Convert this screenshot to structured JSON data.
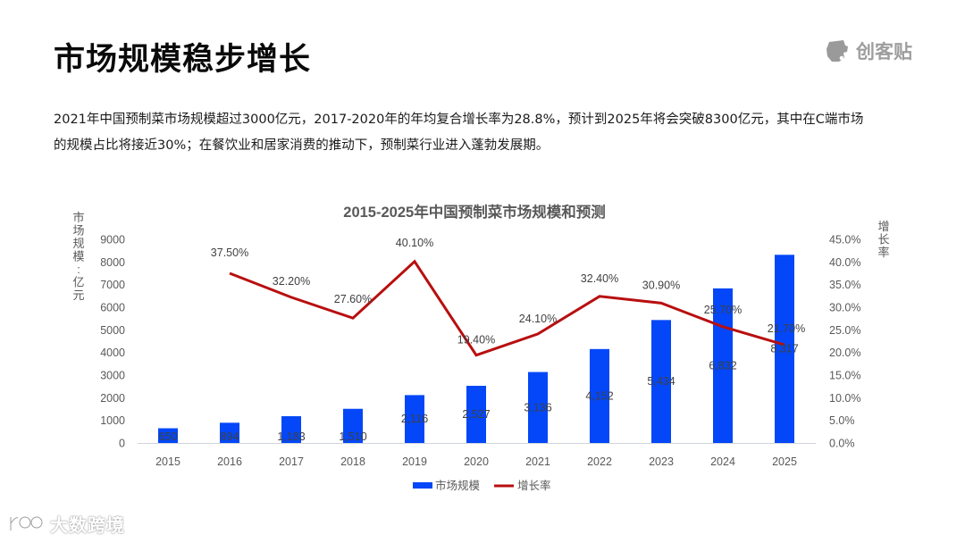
{
  "page": {
    "title": "市场规模稳步增长",
    "brand": {
      "icon": "chuangkit-logo-icon",
      "text": "创客贴"
    },
    "description": [
      "2021年中国预制菜市场规模超过3000亿元，2017-2020年的年均复合增长率为28.8%，预计到2025年将会突破8300亿元，其中在C端市场",
      "的规模占比将接近30%；在餐饮业和居家消费的推动下，预制菜行业进入蓬勃发展期。"
    ],
    "watermark": {
      "icon": "dashu-logo-icon",
      "text": "大数跨境"
    }
  },
  "colors": {
    "bar": "#0347F8",
    "line": "#B80F0F",
    "axis_text": "#595959",
    "baseline": "#D0D4DC"
  },
  "chart_data": {
    "type": "bar+line",
    "title": "2015-2025年中国预制菜市场规模和预测",
    "xlabel": "",
    "ylabel": "市场规模：亿元",
    "y2label": "增长率",
    "categories": [
      "2015",
      "2016",
      "2017",
      "2018",
      "2019",
      "2020",
      "2021",
      "2022",
      "2023",
      "2024",
      "2025"
    ],
    "series": [
      {
        "name": "市场规模",
        "type": "bar",
        "axis": "left",
        "values": [
          650,
          894,
          1183,
          1510,
          2116,
          2527,
          3136,
          4152,
          5434,
          6832,
          8317
        ],
        "labels": [
          "650",
          "894",
          "1,183",
          "1,510",
          "2,116",
          "2,527",
          "3,136",
          "4,152",
          "5,434",
          "6,832",
          "8,317"
        ]
      },
      {
        "name": "增长率",
        "type": "line",
        "axis": "right",
        "values": [
          null,
          37.5,
          32.2,
          27.6,
          40.1,
          19.4,
          24.1,
          32.4,
          30.9,
          25.7,
          21.7
        ],
        "labels": [
          "",
          "37.50%",
          "32.20%",
          "27.60%",
          "40.10%",
          "19.40%",
          "24.10%",
          "32.40%",
          "30.90%",
          "25.70%",
          "21.70%"
        ]
      }
    ],
    "ylim": [
      0,
      9000
    ],
    "yticks": [
      "0",
      "1000",
      "2000",
      "3000",
      "4000",
      "5000",
      "6000",
      "7000",
      "8000",
      "9000"
    ],
    "y2lim": [
      0,
      45
    ],
    "y2ticks": [
      "0.0%",
      "5.0%",
      "10.0%",
      "15.0%",
      "20.0%",
      "25.0%",
      "30.0%",
      "35.0%",
      "40.0%",
      "45.0%"
    ],
    "legend": {
      "position": "bottom",
      "items": [
        "市场规模",
        "增长率"
      ]
    },
    "grid": false
  }
}
